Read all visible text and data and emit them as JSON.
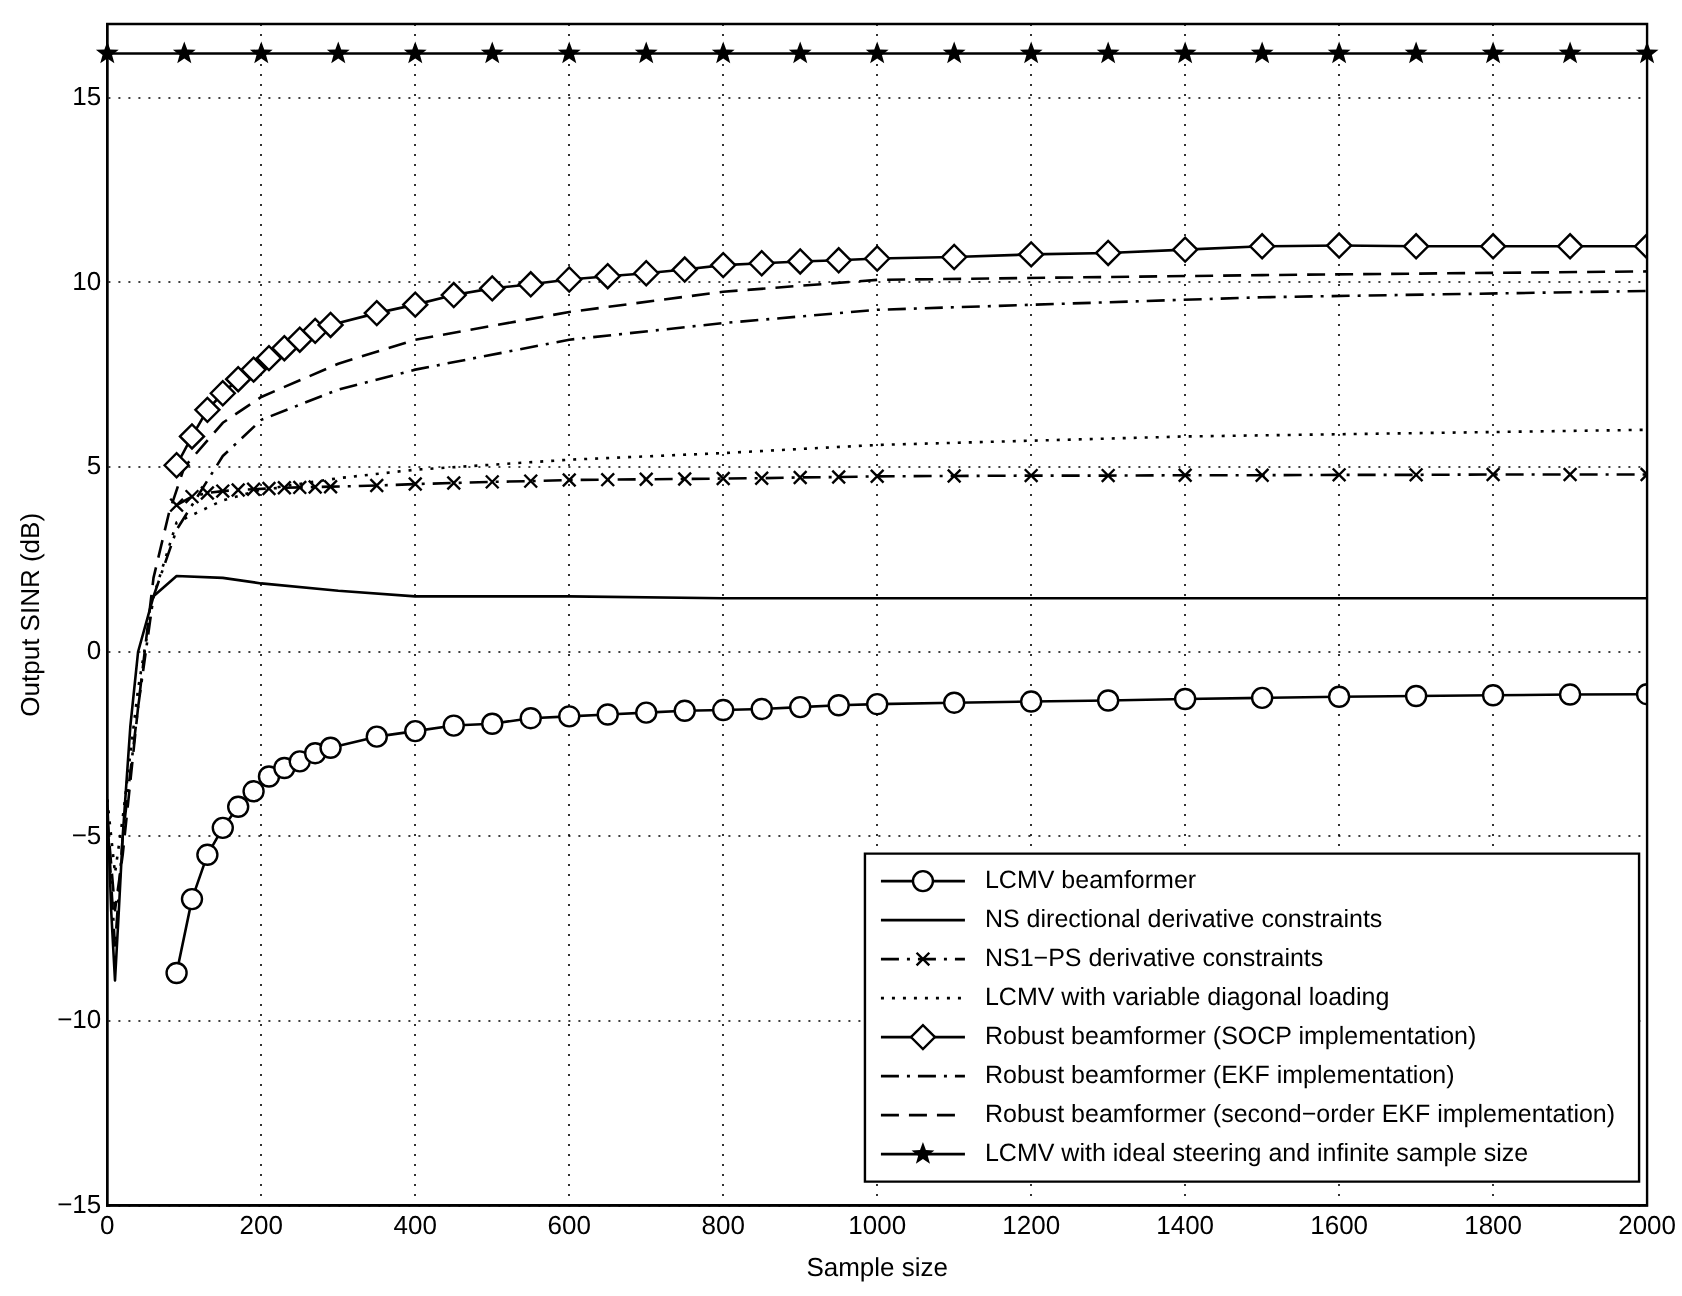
{
  "chart_data": {
    "type": "line",
    "xlabel": "Sample size",
    "ylabel": "Output SINR (dB)",
    "xlim": [
      0,
      2000
    ],
    "xticks": [
      0,
      200,
      400,
      600,
      800,
      1000,
      1200,
      1400,
      1600,
      1800,
      2000
    ],
    "ylim": [
      -15,
      17
    ],
    "yticks": [
      -15,
      -10,
      -5,
      0,
      5,
      10,
      15
    ],
    "grid": true,
    "legend": "bottom right",
    "series": [
      {
        "name": "LCMV beamformer",
        "color": "#000000",
        "marker": "circle",
        "line_style": "solid",
        "x": [
          90,
          110,
          130,
          150,
          170,
          190,
          210,
          230,
          250,
          270,
          290,
          350,
          400,
          450,
          500,
          550,
          600,
          650,
          700,
          750,
          800,
          850,
          900,
          950,
          1000,
          1100,
          1200,
          1300,
          1400,
          1500,
          1600,
          1700,
          1800,
          1900,
          2000
        ],
        "values": [
          -8.7,
          -6.7,
          -5.5,
          -4.77,
          -4.2,
          -3.78,
          -3.38,
          -3.15,
          -2.97,
          -2.75,
          -2.6,
          -2.3,
          -2.15,
          -2.0,
          -1.95,
          -1.8,
          -1.75,
          -1.7,
          -1.65,
          -1.6,
          -1.58,
          -1.55,
          -1.5,
          -1.45,
          -1.42,
          -1.38,
          -1.35,
          -1.32,
          -1.28,
          -1.25,
          -1.22,
          -1.2,
          -1.18,
          -1.16,
          -1.15
        ]
      },
      {
        "name": "NS directional derivative constraints",
        "color": "#000000",
        "marker": "none",
        "line_style": "solid",
        "x": [
          0,
          5,
          10,
          15,
          20,
          30,
          40,
          60,
          90,
          150,
          200,
          300,
          400,
          600,
          800,
          1000,
          1500,
          2000
        ],
        "values": [
          -4,
          -7,
          -8.9,
          -7,
          -5,
          -2,
          0,
          1.5,
          2.05,
          2.0,
          1.85,
          1.65,
          1.5,
          1.5,
          1.45,
          1.45,
          1.45,
          1.45
        ]
      },
      {
        "name": "NS1−PS derivative constraints",
        "color": "#000000",
        "marker": "cross",
        "line_style": "dashdot",
        "x": [
          90,
          110,
          130,
          150,
          170,
          190,
          210,
          230,
          250,
          270,
          290,
          350,
          400,
          450,
          500,
          550,
          600,
          650,
          700,
          750,
          800,
          850,
          900,
          950,
          1000,
          1100,
          1200,
          1300,
          1400,
          1500,
          1600,
          1700,
          1800,
          1900,
          2000
        ],
        "values": [
          3.97,
          4.2,
          4.3,
          4.35,
          4.38,
          4.4,
          4.42,
          4.44,
          4.45,
          4.46,
          4.47,
          4.5,
          4.54,
          4.57,
          4.6,
          4.62,
          4.65,
          4.66,
          4.67,
          4.68,
          4.69,
          4.7,
          4.72,
          4.73,
          4.75,
          4.76,
          4.77,
          4.77,
          4.78,
          4.78,
          4.79,
          4.79,
          4.8,
          4.8,
          4.8
        ]
      },
      {
        "name": "LCMV with variable diagonal loading",
        "color": "#000000",
        "marker": "none",
        "line_style": "dotted",
        "x": [
          0,
          10,
          20,
          40,
          60,
          90,
          150,
          200,
          300,
          400,
          600,
          800,
          1000,
          1400,
          2000
        ],
        "values": [
          -4,
          -6,
          -4.5,
          -1,
          1.5,
          3.5,
          4.1,
          4.39,
          4.7,
          4.93,
          5.2,
          5.38,
          5.6,
          5.83,
          6.01
        ]
      },
      {
        "name": "Robust beamformer (SOCP implementation)",
        "color": "#000000",
        "marker": "diamond",
        "line_style": "solid",
        "x": [
          90,
          110,
          130,
          150,
          170,
          190,
          210,
          230,
          250,
          270,
          290,
          350,
          400,
          450,
          500,
          550,
          600,
          650,
          700,
          750,
          800,
          850,
          900,
          950,
          1000,
          1100,
          1200,
          1300,
          1400,
          1500,
          1600,
          1700,
          1800,
          1900,
          2000
        ],
        "values": [
          5.05,
          5.83,
          6.55,
          7.0,
          7.38,
          7.64,
          7.95,
          8.22,
          8.45,
          8.69,
          8.85,
          9.17,
          9.4,
          9.66,
          9.84,
          9.95,
          10.08,
          10.17,
          10.25,
          10.35,
          10.47,
          10.52,
          10.57,
          10.6,
          10.65,
          10.69,
          10.76,
          10.8,
          10.89,
          10.98,
          11.0,
          10.98,
          10.98,
          10.98,
          10.98
        ]
      },
      {
        "name": "Robust beamformer (EKF implementation)",
        "color": "#000000",
        "marker": "none",
        "line_style": "dashdot",
        "x": [
          0,
          10,
          20,
          40,
          60,
          90,
          150,
          200,
          300,
          400,
          600,
          800,
          1000,
          1500,
          2000
        ],
        "values": [
          -4.5,
          -8,
          -5,
          -1.5,
          1.5,
          3.3,
          5.3,
          6.28,
          7.1,
          7.64,
          8.45,
          8.9,
          9.26,
          9.6,
          9.77
        ]
      },
      {
        "name": "Robust beamformer (second−order EKF implementation)",
        "color": "#000000",
        "marker": "none",
        "line_style": "dashed",
        "x": [
          0,
          10,
          20,
          40,
          60,
          80,
          100,
          150,
          200,
          300,
          400,
          600,
          800,
          1000,
          1500,
          2000
        ],
        "values": [
          -4.5,
          -7,
          -5.5,
          -1.5,
          2,
          3.75,
          5,
          6.2,
          6.9,
          7.8,
          8.45,
          9.2,
          9.75,
          10.07,
          10.2,
          10.3
        ]
      },
      {
        "name": "LCMV with ideal steering and infinite sample size",
        "color": "#000000",
        "marker": "star",
        "line_style": "solid",
        "x": [
          0,
          100,
          200,
          300,
          400,
          500,
          600,
          700,
          800,
          900,
          1000,
          1100,
          1200,
          1300,
          1400,
          1500,
          1600,
          1700,
          1800,
          1900,
          2000
        ],
        "values": [
          16.2,
          16.2,
          16.2,
          16.2,
          16.2,
          16.2,
          16.2,
          16.2,
          16.2,
          16.2,
          16.2,
          16.2,
          16.2,
          16.2,
          16.2,
          16.2,
          16.2,
          16.2,
          16.2,
          16.2,
          16.2
        ]
      }
    ]
  }
}
